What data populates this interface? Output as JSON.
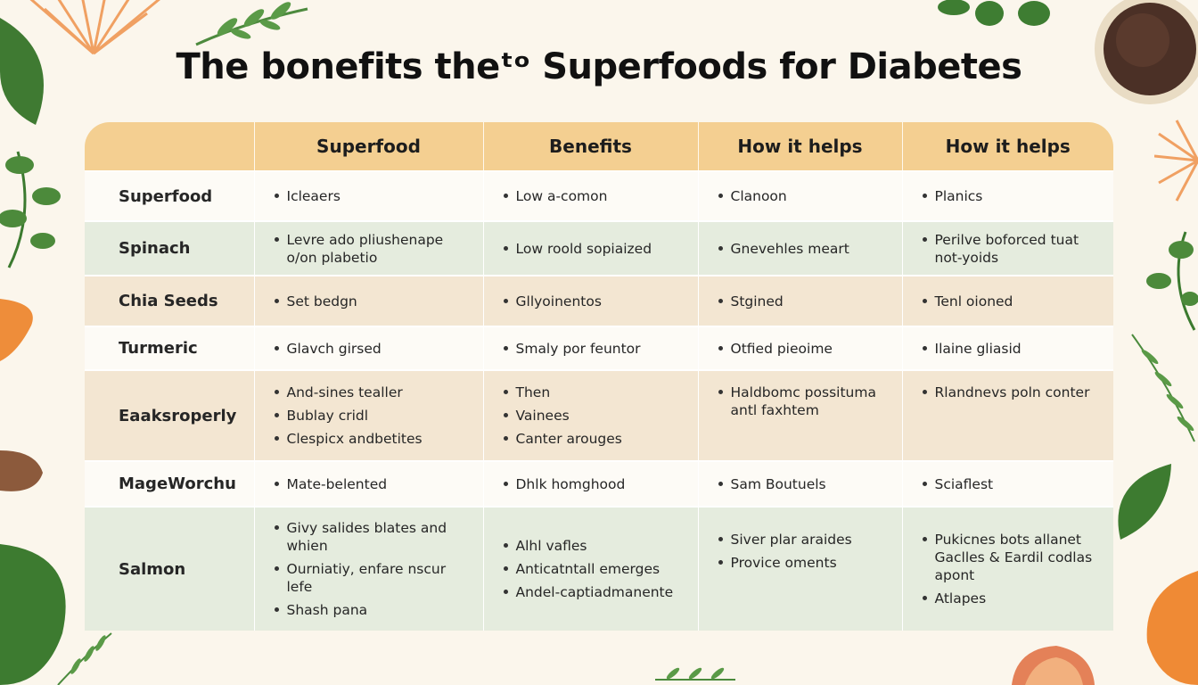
{
  "title": "The bonefits theᵗᵒ Superfoods for Diabetes",
  "colors": {
    "header": "#f4cf91",
    "green_row": "#e5ecde",
    "beige_row": "#f3e6d2",
    "background": "#fbf6ec"
  },
  "table": {
    "headers": [
      "",
      "Superfood",
      "Benefits",
      "How it helps",
      "How it helps"
    ],
    "rows": [
      {
        "name": "Superfood",
        "cells": [
          [
            "Icleaers"
          ],
          [
            "Low a-comon"
          ],
          [
            "Clanoon"
          ],
          [
            "Planics"
          ]
        ]
      },
      {
        "name": "Spinach",
        "cells": [
          [
            "Levre ado pliushenape o/on plabetio"
          ],
          [
            "Low roold sopiaized"
          ],
          [
            "Gnevehles meart"
          ],
          [
            "Perilve boforced tuat not-yoids"
          ]
        ]
      },
      {
        "name": "Chia Seeds",
        "cells": [
          [
            "Set bedgn"
          ],
          [
            "Gllyoinentos"
          ],
          [
            "Stgined"
          ],
          [
            "Tenl oioned"
          ]
        ]
      },
      {
        "name": "Turmeric",
        "cells": [
          [
            "Glavch girsed"
          ],
          [
            "Smaly por feuntor"
          ],
          [
            "Otfied pieoime"
          ],
          [
            "Ilaine gliasid"
          ]
        ]
      },
      {
        "name": "Eaaksroperly",
        "cells": [
          [
            "And-sines tealler",
            "Bublay cridl",
            "Clespicx andbetites"
          ],
          [
            "Then",
            "Vainees",
            "Canter arouges"
          ],
          [
            "Haldbomc possituma antl faxhtem"
          ],
          [
            "Rlandnevs poln conter"
          ]
        ]
      },
      {
        "name": "MageWorchu",
        "cells": [
          [
            "Mate-belented"
          ],
          [
            "Dhlk homghood"
          ],
          [
            "Sam Boutuels"
          ],
          [
            "Sciaflest"
          ]
        ]
      },
      {
        "name": "Salmon",
        "cells": [
          [
            "Givy salides blates and whien",
            "Ourniatiy, enfare nscur lefe",
            "Shash pana"
          ],
          [
            "Alhl vafles",
            "Anticatntall emerges",
            "Andel-captiadmanente"
          ],
          [
            "Siver plar araides",
            "Provice oments"
          ],
          [
            "Pukicnes bots allanet Gaclles & Eardil codlas apont",
            "Atlapes"
          ]
        ]
      }
    ]
  }
}
